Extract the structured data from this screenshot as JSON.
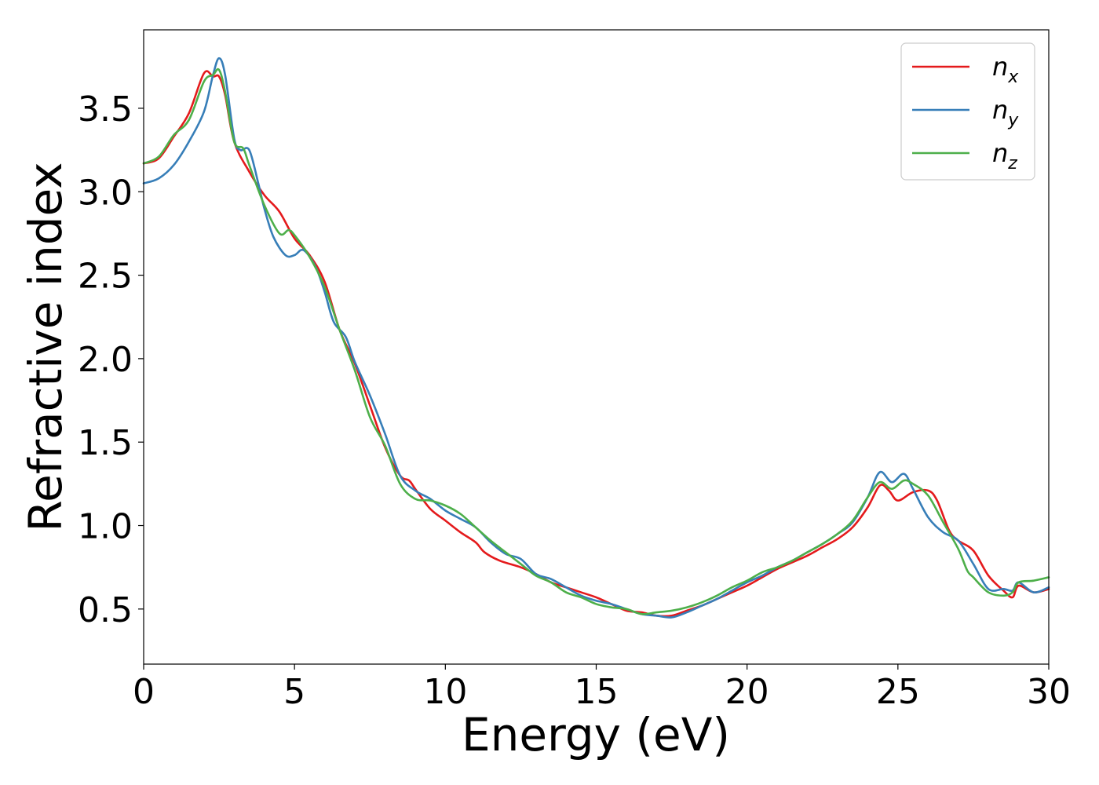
{
  "chart_data": {
    "type": "line",
    "title": "",
    "xlabel": "Energy (eV)",
    "ylabel": "Refractive index",
    "xlim": [
      0,
      30
    ],
    "ylim": [
      0.17,
      3.97
    ],
    "xticks": [
      0,
      5,
      10,
      15,
      20,
      25,
      30
    ],
    "xtick_labels": [
      "0",
      "5",
      "10",
      "15",
      "20",
      "25",
      "30"
    ],
    "yticks": [
      0.5,
      1.0,
      1.5,
      2.0,
      2.5,
      3.0,
      3.5
    ],
    "ytick_labels": [
      "0.5",
      "1.0",
      "1.5",
      "2.0",
      "2.5",
      "3.0",
      "3.5"
    ],
    "grid": false,
    "legend_position": "top-right",
    "series": [
      {
        "name": "n_x",
        "legend_base": "n",
        "legend_sub": "x",
        "color": "#e41a1c",
        "points": [
          [
            0,
            3.17
          ],
          [
            0.5,
            3.2
          ],
          [
            1,
            3.33
          ],
          [
            1.5,
            3.47
          ],
          [
            2,
            3.71
          ],
          [
            2.3,
            3.69
          ],
          [
            2.5,
            3.69
          ],
          [
            2.7,
            3.58
          ],
          [
            3.0,
            3.3
          ],
          [
            3.5,
            3.12
          ],
          [
            4.0,
            2.98
          ],
          [
            4.5,
            2.88
          ],
          [
            5.0,
            2.72
          ],
          [
            5.5,
            2.62
          ],
          [
            6.0,
            2.46
          ],
          [
            6.5,
            2.17
          ],
          [
            7.0,
            1.97
          ],
          [
            7.5,
            1.72
          ],
          [
            8.0,
            1.47
          ],
          [
            8.5,
            1.3
          ],
          [
            8.8,
            1.27
          ],
          [
            9.0,
            1.22
          ],
          [
            9.5,
            1.1
          ],
          [
            10.0,
            1.03
          ],
          [
            10.5,
            0.96
          ],
          [
            11.0,
            0.9
          ],
          [
            11.3,
            0.84
          ],
          [
            11.8,
            0.79
          ],
          [
            12.5,
            0.75
          ],
          [
            13.0,
            0.71
          ],
          [
            13.5,
            0.66
          ],
          [
            14.0,
            0.63
          ],
          [
            14.5,
            0.6
          ],
          [
            15.0,
            0.57
          ],
          [
            15.5,
            0.53
          ],
          [
            16.0,
            0.49
          ],
          [
            16.5,
            0.48
          ],
          [
            17.0,
            0.46
          ],
          [
            17.5,
            0.46
          ],
          [
            18.0,
            0.49
          ],
          [
            18.5,
            0.52
          ],
          [
            19.0,
            0.56
          ],
          [
            19.5,
            0.6
          ],
          [
            20.0,
            0.64
          ],
          [
            20.5,
            0.69
          ],
          [
            21.0,
            0.74
          ],
          [
            21.5,
            0.78
          ],
          [
            22.0,
            0.82
          ],
          [
            22.5,
            0.87
          ],
          [
            23.0,
            0.92
          ],
          [
            23.5,
            0.99
          ],
          [
            24.0,
            1.11
          ],
          [
            24.4,
            1.24
          ],
          [
            24.7,
            1.21
          ],
          [
            25.0,
            1.15
          ],
          [
            25.5,
            1.2
          ],
          [
            26.0,
            1.21
          ],
          [
            26.3,
            1.15
          ],
          [
            26.7,
            0.97
          ],
          [
            27.0,
            0.91
          ],
          [
            27.5,
            0.85
          ],
          [
            28.0,
            0.7
          ],
          [
            28.5,
            0.61
          ],
          [
            28.8,
            0.57
          ],
          [
            29.0,
            0.64
          ],
          [
            29.5,
            0.6
          ],
          [
            30.0,
            0.62
          ]
        ]
      },
      {
        "name": "n_y",
        "legend_base": "n",
        "legend_sub": "y",
        "color": "#377eb8",
        "points": [
          [
            0,
            3.05
          ],
          [
            0.5,
            3.08
          ],
          [
            1,
            3.16
          ],
          [
            1.5,
            3.3
          ],
          [
            2,
            3.48
          ],
          [
            2.3,
            3.7
          ],
          [
            2.5,
            3.8
          ],
          [
            2.7,
            3.7
          ],
          [
            3.0,
            3.32
          ],
          [
            3.2,
            3.25
          ],
          [
            3.5,
            3.25
          ],
          [
            3.8,
            3.05
          ],
          [
            4.0,
            2.9
          ],
          [
            4.3,
            2.73
          ],
          [
            4.7,
            2.62
          ],
          [
            5.0,
            2.62
          ],
          [
            5.3,
            2.65
          ],
          [
            5.7,
            2.55
          ],
          [
            6.0,
            2.4
          ],
          [
            6.3,
            2.22
          ],
          [
            6.7,
            2.13
          ],
          [
            7.0,
            1.98
          ],
          [
            7.5,
            1.78
          ],
          [
            8.0,
            1.55
          ],
          [
            8.5,
            1.3
          ],
          [
            9.0,
            1.21
          ],
          [
            9.5,
            1.16
          ],
          [
            10.0,
            1.09
          ],
          [
            10.5,
            1.04
          ],
          [
            11.0,
            0.99
          ],
          [
            11.5,
            0.9
          ],
          [
            12.0,
            0.83
          ],
          [
            12.5,
            0.8
          ],
          [
            13.0,
            0.71
          ],
          [
            13.5,
            0.68
          ],
          [
            14.0,
            0.63
          ],
          [
            14.5,
            0.58
          ],
          [
            15.0,
            0.55
          ],
          [
            15.5,
            0.53
          ],
          [
            16.0,
            0.5
          ],
          [
            16.5,
            0.47
          ],
          [
            17.0,
            0.46
          ],
          [
            17.5,
            0.45
          ],
          [
            18.0,
            0.48
          ],
          [
            18.5,
            0.52
          ],
          [
            19.0,
            0.56
          ],
          [
            19.5,
            0.61
          ],
          [
            20.0,
            0.66
          ],
          [
            20.5,
            0.7
          ],
          [
            21.0,
            0.75
          ],
          [
            21.5,
            0.79
          ],
          [
            22.0,
            0.84
          ],
          [
            22.5,
            0.89
          ],
          [
            23.0,
            0.95
          ],
          [
            23.5,
            1.02
          ],
          [
            24.0,
            1.17
          ],
          [
            24.4,
            1.32
          ],
          [
            24.8,
            1.26
          ],
          [
            25.2,
            1.31
          ],
          [
            25.5,
            1.22
          ],
          [
            26.0,
            1.05
          ],
          [
            26.5,
            0.96
          ],
          [
            27.0,
            0.91
          ],
          [
            27.5,
            0.77
          ],
          [
            28.0,
            0.62
          ],
          [
            28.5,
            0.62
          ],
          [
            28.8,
            0.61
          ],
          [
            29.0,
            0.66
          ],
          [
            29.5,
            0.6
          ],
          [
            30.0,
            0.63
          ]
        ]
      },
      {
        "name": "n_z",
        "legend_base": "n",
        "legend_sub": "z",
        "color": "#4daf4a",
        "points": [
          [
            0,
            3.17
          ],
          [
            0.5,
            3.21
          ],
          [
            1,
            3.34
          ],
          [
            1.5,
            3.43
          ],
          [
            2,
            3.66
          ],
          [
            2.3,
            3.7
          ],
          [
            2.5,
            3.73
          ],
          [
            2.7,
            3.6
          ],
          [
            3.0,
            3.3
          ],
          [
            3.3,
            3.26
          ],
          [
            3.5,
            3.16
          ],
          [
            4.0,
            2.92
          ],
          [
            4.5,
            2.75
          ],
          [
            4.8,
            2.77
          ],
          [
            5.0,
            2.74
          ],
          [
            5.5,
            2.61
          ],
          [
            6.0,
            2.43
          ],
          [
            6.5,
            2.17
          ],
          [
            7.0,
            1.93
          ],
          [
            7.5,
            1.65
          ],
          [
            8.0,
            1.48
          ],
          [
            8.5,
            1.25
          ],
          [
            9.0,
            1.16
          ],
          [
            9.5,
            1.15
          ],
          [
            10.0,
            1.12
          ],
          [
            10.5,
            1.07
          ],
          [
            11.0,
            0.99
          ],
          [
            11.5,
            0.91
          ],
          [
            12.0,
            0.84
          ],
          [
            12.5,
            0.77
          ],
          [
            13.0,
            0.7
          ],
          [
            13.5,
            0.66
          ],
          [
            14.0,
            0.6
          ],
          [
            14.5,
            0.57
          ],
          [
            15.0,
            0.53
          ],
          [
            15.5,
            0.51
          ],
          [
            16.0,
            0.5
          ],
          [
            16.5,
            0.47
          ],
          [
            17.0,
            0.48
          ],
          [
            17.5,
            0.49
          ],
          [
            18.0,
            0.51
          ],
          [
            18.5,
            0.54
          ],
          [
            19.0,
            0.58
          ],
          [
            19.5,
            0.63
          ],
          [
            20.0,
            0.67
          ],
          [
            20.5,
            0.72
          ],
          [
            21.0,
            0.75
          ],
          [
            21.5,
            0.79
          ],
          [
            22.0,
            0.84
          ],
          [
            22.5,
            0.89
          ],
          [
            23.0,
            0.95
          ],
          [
            23.5,
            1.03
          ],
          [
            24.0,
            1.17
          ],
          [
            24.4,
            1.26
          ],
          [
            24.8,
            1.22
          ],
          [
            25.2,
            1.27
          ],
          [
            25.5,
            1.25
          ],
          [
            26.0,
            1.18
          ],
          [
            26.5,
            1.02
          ],
          [
            27.0,
            0.86
          ],
          [
            27.3,
            0.73
          ],
          [
            27.5,
            0.69
          ],
          [
            28.0,
            0.6
          ],
          [
            28.5,
            0.58
          ],
          [
            28.8,
            0.6
          ],
          [
            29.0,
            0.66
          ],
          [
            29.5,
            0.67
          ],
          [
            30.0,
            0.69
          ]
        ]
      }
    ]
  }
}
